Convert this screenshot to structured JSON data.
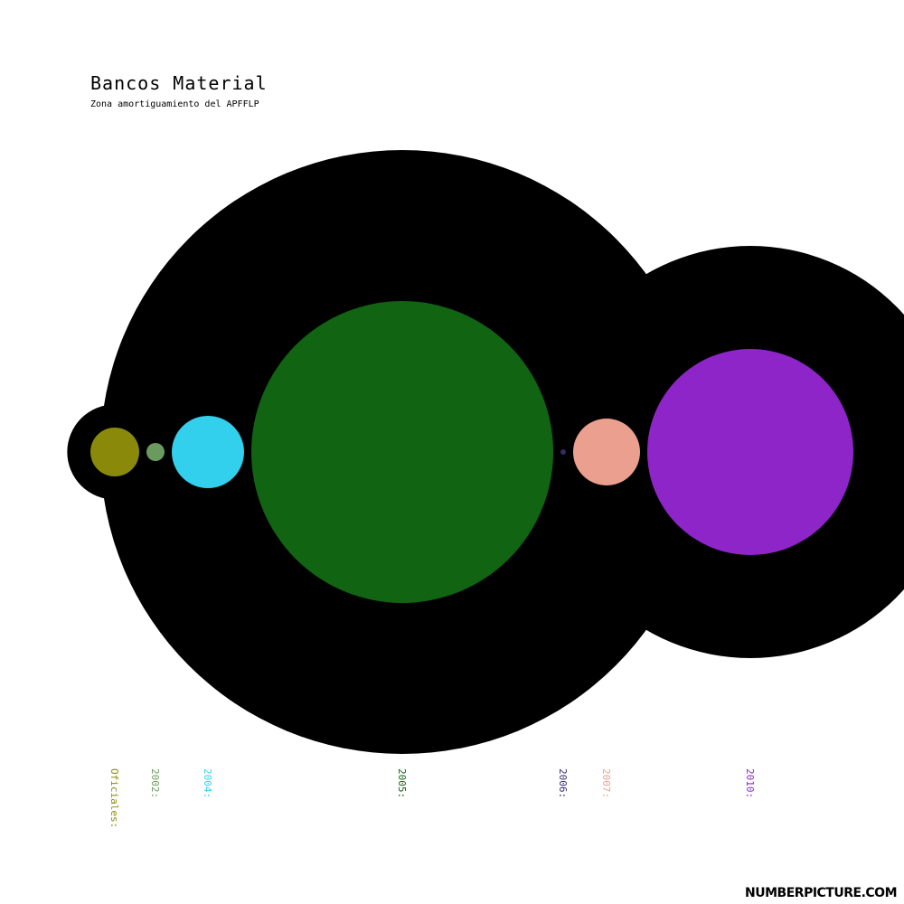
{
  "header": {
    "title": "Bancos Material",
    "subtitle": "Zona amortiguamiento del APFFLP"
  },
  "footer": {
    "brand": "NUMBERPICTURE.COM"
  },
  "chart_data": {
    "type": "bubble",
    "title": "Bancos Material",
    "subtitle": "Zona amortiguamiento del APFFLP",
    "background_color": "#000000",
    "items": [
      {
        "label": "Oficiales:",
        "value": 27,
        "color": "#8b8909"
      },
      {
        "label": "2002:",
        "value": 10,
        "color": "#6b9a5e"
      },
      {
        "label": "2004:",
        "value": 40,
        "color": "#33d0ed"
      },
      {
        "label": "2005:",
        "value": 167,
        "color": "#106412"
      },
      {
        "label": "2006:",
        "value": 3,
        "color": "#332b6b"
      },
      {
        "label": "2007:",
        "value": 37,
        "color": "#ea9f8f"
      },
      {
        "label": "2010:",
        "value": 114,
        "color": "#8e25c9"
      }
    ]
  }
}
